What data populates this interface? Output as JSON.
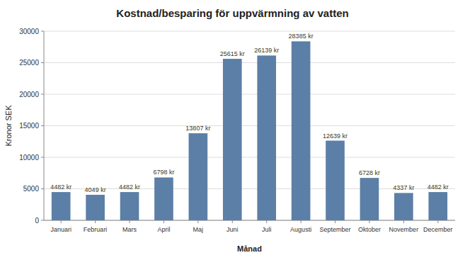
{
  "chart_data": {
    "type": "bar",
    "title": "Kostnad/besparing för uppvärmning av vatten",
    "xlabel": "Månad",
    "ylabel": "Kronor SEK",
    "categories": [
      "Januari",
      "Februari",
      "Mars",
      "April",
      "Maj",
      "Juni",
      "Juli",
      "Augusti",
      "September",
      "Oktober",
      "November",
      "December"
    ],
    "values": [
      4482,
      4049,
      4482,
      6798,
      13807,
      25615,
      26139,
      28385,
      12639,
      6728,
      4337,
      4482
    ],
    "value_labels": [
      "4482 kr",
      "4049 kr",
      "4482 kr",
      "6798 kr",
      "13807 kr",
      "25615 kr",
      "26139 kr",
      "28385 kr",
      "12639 kr",
      "6728 kr",
      "4337 kr",
      "4482 kr"
    ],
    "color": "#5b7fa6",
    "ylim": [
      0,
      30000
    ],
    "yticks": [
      0,
      5000,
      10000,
      15000,
      20000,
      25000,
      30000
    ],
    "grid": true,
    "data_labels": true
  }
}
